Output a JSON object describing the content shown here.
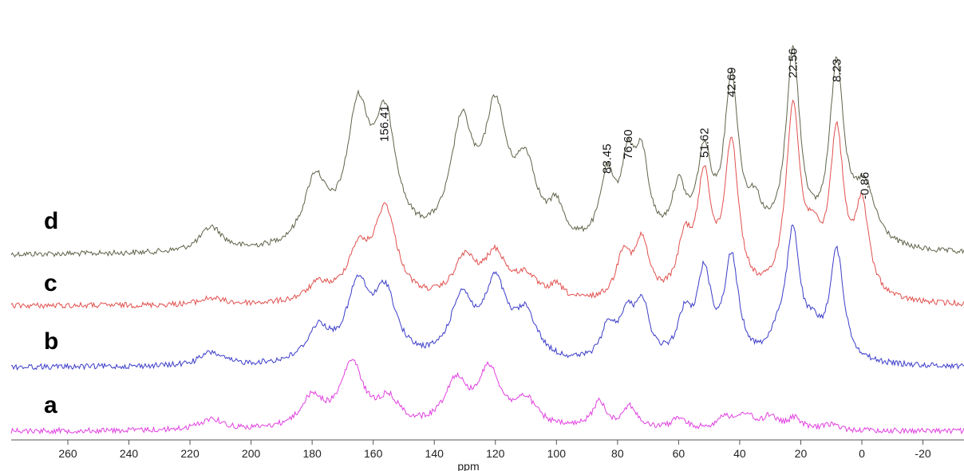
{
  "chart_data": {
    "type": "line",
    "title": "",
    "xlabel": "ppm",
    "ylabel": "",
    "xlim": [
      273,
      -28
    ],
    "x_ticks": [
      "260",
      "240",
      "220",
      "200",
      "180",
      "160",
      "140",
      "120",
      "100",
      "80",
      "60",
      "40",
      "20",
      "0",
      "-20"
    ],
    "grid": false,
    "series": [
      {
        "name": "d",
        "color": "#5f6349",
        "peaks": [
          [
            213,
            0.15
          ],
          [
            179,
            0.4
          ],
          [
            165,
            0.78
          ],
          [
            156,
            0.72
          ],
          [
            131,
            0.7
          ],
          [
            120,
            0.77
          ],
          [
            110,
            0.45
          ],
          [
            100,
            0.2
          ],
          [
            83.45,
            0.4
          ],
          [
            76.6,
            0.46
          ],
          [
            72,
            0.48
          ],
          [
            60,
            0.33
          ],
          [
            51.62,
            0.53
          ],
          [
            42.69,
            1.0
          ],
          [
            35,
            0.2
          ],
          [
            22.56,
            1.18
          ],
          [
            8.23,
            1.09
          ],
          [
            -0.86,
            0.35
          ]
        ]
      },
      {
        "name": "c",
        "color": "#e0504d",
        "peaks": [
          [
            213,
            0.04
          ],
          [
            178,
            0.1
          ],
          [
            165,
            0.28
          ],
          [
            156,
            0.55
          ],
          [
            130,
            0.25
          ],
          [
            120,
            0.27
          ],
          [
            110,
            0.14
          ],
          [
            100,
            0.08
          ],
          [
            78,
            0.28
          ],
          [
            72,
            0.34
          ],
          [
            58,
            0.32
          ],
          [
            51.62,
            0.7
          ],
          [
            42.69,
            0.93
          ],
          [
            22.56,
            1.15
          ],
          [
            16,
            0.27
          ],
          [
            8.23,
            0.98
          ],
          [
            0,
            0.55
          ]
        ]
      },
      {
        "name": "b",
        "color": "#3b3cc8",
        "peaks": [
          [
            213,
            0.12
          ],
          [
            178,
            0.3
          ],
          [
            165,
            0.66
          ],
          [
            156,
            0.6
          ],
          [
            131,
            0.56
          ],
          [
            120,
            0.68
          ],
          [
            110,
            0.4
          ],
          [
            83,
            0.3
          ],
          [
            77,
            0.38
          ],
          [
            72,
            0.5
          ],
          [
            58,
            0.38
          ],
          [
            51.62,
            0.77
          ],
          [
            42.69,
            0.92
          ],
          [
            28,
            0.15
          ],
          [
            22.56,
            1.16
          ],
          [
            16,
            0.2
          ],
          [
            8.23,
            1.0
          ]
        ]
      },
      {
        "name": "a",
        "color": "#e040e0",
        "peaks": [
          [
            213,
            0.15
          ],
          [
            180,
            0.4
          ],
          [
            167,
            0.85
          ],
          [
            155,
            0.35
          ],
          [
            133,
            0.6
          ],
          [
            122,
            0.75
          ],
          [
            110,
            0.35
          ],
          [
            86,
            0.35
          ],
          [
            76,
            0.3
          ],
          [
            60,
            0.15
          ],
          [
            45,
            0.18
          ],
          [
            38,
            0.2
          ],
          [
            30,
            0.18
          ],
          [
            22,
            0.15
          ],
          [
            10,
            0.08
          ]
        ]
      }
    ],
    "annotations": [
      "156.41",
      "83.45",
      "76.60",
      "51.62",
      "42.69",
      "22.56",
      "8.23",
      "-0.86"
    ]
  }
}
